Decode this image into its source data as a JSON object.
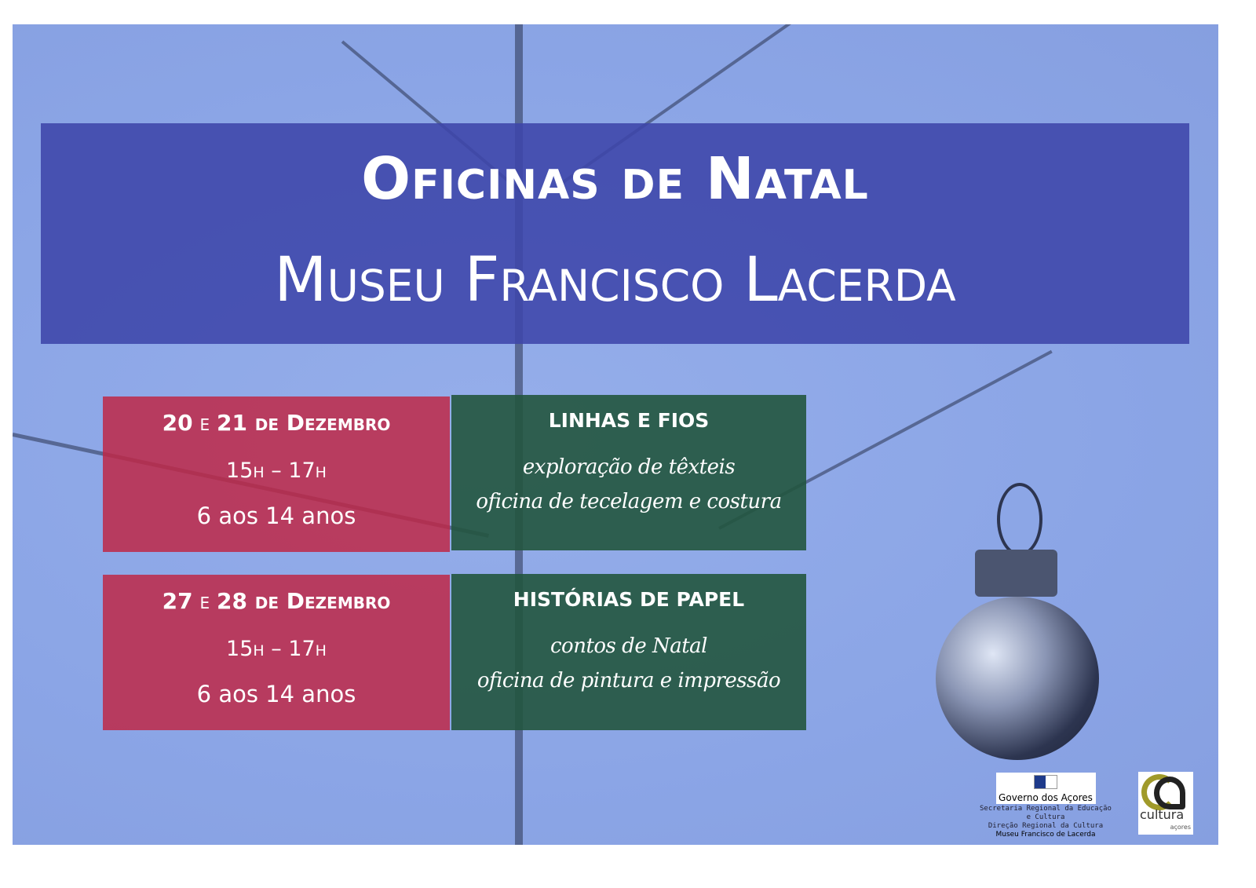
{
  "header": {
    "title": "Oficinas de Natal",
    "subtitle": "Museu Francisco Lacerda"
  },
  "sessions": [
    {
      "date_a": "20",
      "conj": " e ",
      "date_b": "21",
      "month": " de Dezembro",
      "time": "15h – 17h",
      "ages": "6 aos 14 anos",
      "workshop": "LINHAS E FIOS",
      "desc1": "exploração de têxteis",
      "desc2": "oficina de tecelagem e costura"
    },
    {
      "date_a": "27",
      "conj": " e ",
      "date_b": "28",
      "month": " de Dezembro",
      "time": "15h – 17h",
      "ages": "6 aos 14 anos",
      "workshop": "HISTÓRIAS DE PAPEL",
      "desc1": "contos de Natal",
      "desc2": "oficina de pintura e impressão"
    }
  ],
  "footer": {
    "gov_logo": "Governo dos Açores",
    "line1": "Secretaria Regional da Educação",
    "line2": "e Cultura",
    "line3": "Direção Regional da Cultura",
    "museum": "Museu Francisco de Lacerda",
    "culture_logo": "cultura",
    "culture_sub": "açores"
  },
  "colors": {
    "background": "#8ea8e8",
    "header": "#3e46aa",
    "date_box": "#be2846",
    "workshop_box": "#22553e"
  }
}
